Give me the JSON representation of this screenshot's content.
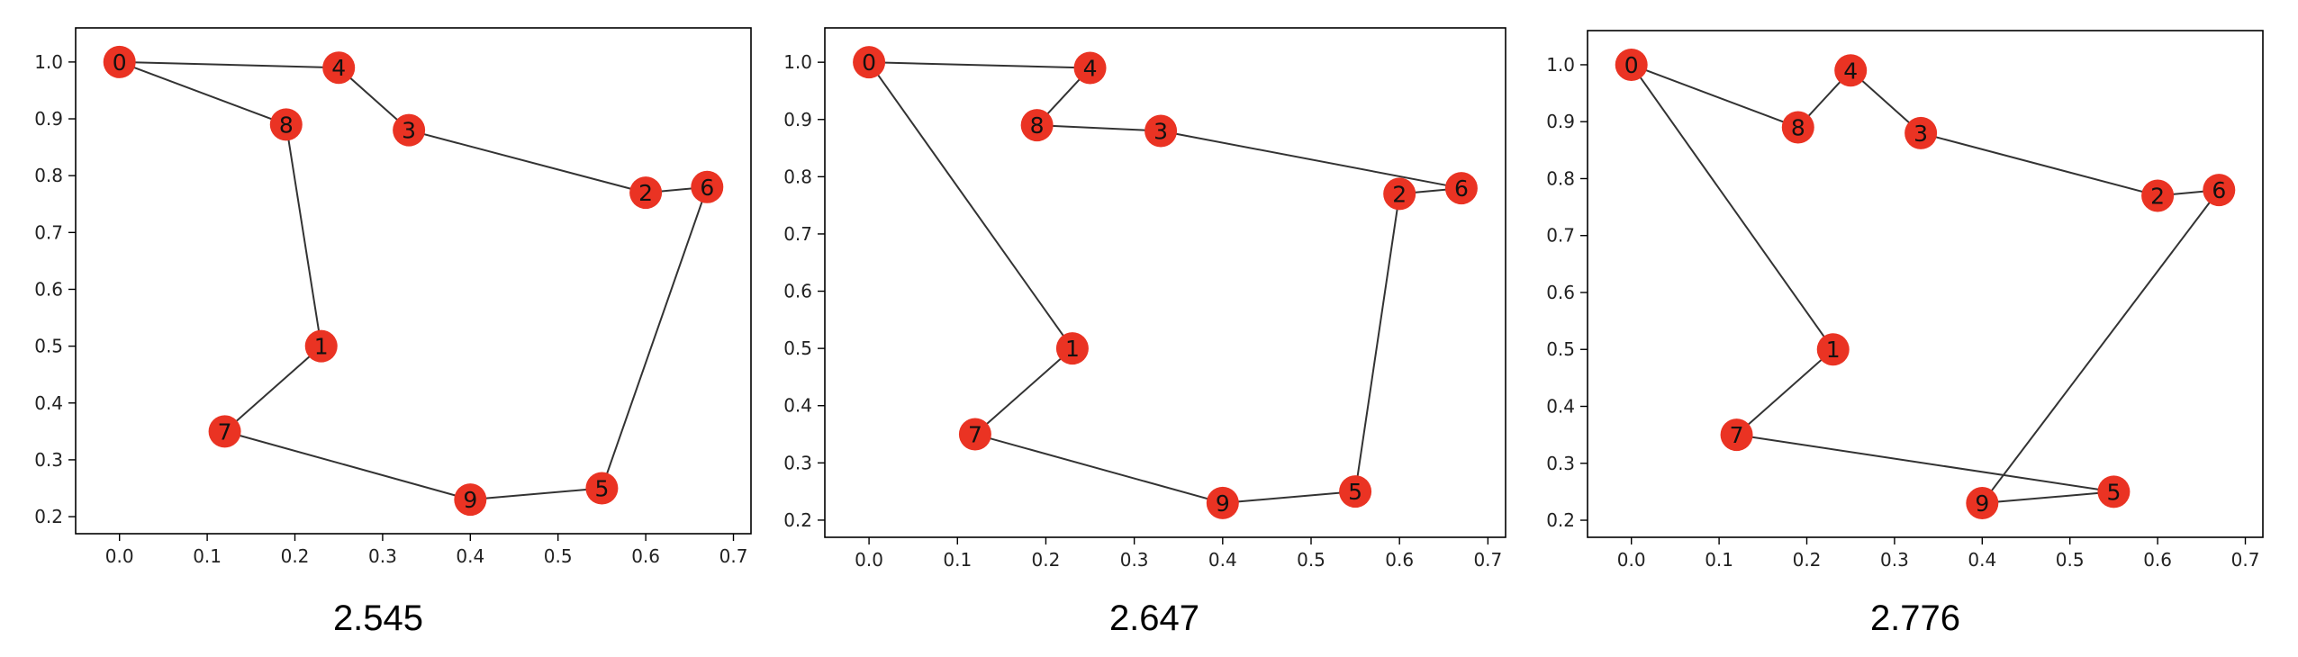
{
  "chart_data": [
    {
      "type": "scatter",
      "caption": "2.545",
      "xlim": [
        -0.05,
        0.72
      ],
      "ylim": [
        0.17,
        1.06
      ],
      "x_ticks": [
        "0.0",
        "0.1",
        "0.2",
        "0.3",
        "0.4",
        "0.5",
        "0.6",
        "0.7"
      ],
      "y_ticks": [
        "0.2",
        "0.3",
        "0.4",
        "0.5",
        "0.6",
        "0.7",
        "0.8",
        "0.9",
        "1.0"
      ],
      "nodes": [
        {
          "label": "0",
          "x": 0.0,
          "y": 1.0
        },
        {
          "label": "1",
          "x": 0.23,
          "y": 0.5
        },
        {
          "label": "2",
          "x": 0.6,
          "y": 0.77
        },
        {
          "label": "3",
          "x": 0.33,
          "y": 0.88
        },
        {
          "label": "4",
          "x": 0.25,
          "y": 0.99
        },
        {
          "label": "5",
          "x": 0.55,
          "y": 0.25
        },
        {
          "label": "6",
          "x": 0.67,
          "y": 0.78
        },
        {
          "label": "7",
          "x": 0.12,
          "y": 0.35
        },
        {
          "label": "8",
          "x": 0.19,
          "y": 0.89
        },
        {
          "label": "9",
          "x": 0.4,
          "y": 0.23
        }
      ],
      "edges": [
        [
          0,
          4
        ],
        [
          4,
          3
        ],
        [
          3,
          2
        ],
        [
          2,
          6
        ],
        [
          6,
          5
        ],
        [
          5,
          9
        ],
        [
          9,
          7
        ],
        [
          7,
          1
        ],
        [
          1,
          8
        ],
        [
          8,
          0
        ]
      ],
      "grid": false
    },
    {
      "type": "scatter",
      "caption": "2.647",
      "xlim": [
        -0.05,
        0.72
      ],
      "ylim": [
        0.17,
        1.06
      ],
      "x_ticks": [
        "0.0",
        "0.1",
        "0.2",
        "0.3",
        "0.4",
        "0.5",
        "0.6",
        "0.7"
      ],
      "y_ticks": [
        "0.2",
        "0.3",
        "0.4",
        "0.5",
        "0.6",
        "0.7",
        "0.8",
        "0.9",
        "1.0"
      ],
      "nodes": [
        {
          "label": "0",
          "x": 0.0,
          "y": 1.0
        },
        {
          "label": "1",
          "x": 0.23,
          "y": 0.5
        },
        {
          "label": "2",
          "x": 0.6,
          "y": 0.77
        },
        {
          "label": "3",
          "x": 0.33,
          "y": 0.88
        },
        {
          "label": "4",
          "x": 0.25,
          "y": 0.99
        },
        {
          "label": "5",
          "x": 0.55,
          "y": 0.25
        },
        {
          "label": "6",
          "x": 0.67,
          "y": 0.78
        },
        {
          "label": "7",
          "x": 0.12,
          "y": 0.35
        },
        {
          "label": "8",
          "x": 0.19,
          "y": 0.89
        },
        {
          "label": "9",
          "x": 0.4,
          "y": 0.23
        }
      ],
      "edges": [
        [
          0,
          4
        ],
        [
          4,
          8
        ],
        [
          8,
          3
        ],
        [
          3,
          6
        ],
        [
          6,
          2
        ],
        [
          2,
          5
        ],
        [
          5,
          9
        ],
        [
          9,
          7
        ],
        [
          7,
          1
        ],
        [
          1,
          0
        ]
      ],
      "grid": false
    },
    {
      "type": "scatter",
      "caption": "2.776",
      "xlim": [
        -0.05,
        0.72
      ],
      "ylim": [
        0.17,
        1.06
      ],
      "x_ticks": [
        "0.0",
        "0.1",
        "0.2",
        "0.3",
        "0.4",
        "0.5",
        "0.6",
        "0.7"
      ],
      "y_ticks": [
        "0.2",
        "0.3",
        "0.4",
        "0.5",
        "0.6",
        "0.7",
        "0.8",
        "0.9",
        "1.0"
      ],
      "nodes": [
        {
          "label": "0",
          "x": 0.0,
          "y": 1.0
        },
        {
          "label": "1",
          "x": 0.23,
          "y": 0.5
        },
        {
          "label": "2",
          "x": 0.6,
          "y": 0.77
        },
        {
          "label": "3",
          "x": 0.33,
          "y": 0.88
        },
        {
          "label": "4",
          "x": 0.25,
          "y": 0.99
        },
        {
          "label": "5",
          "x": 0.55,
          "y": 0.25
        },
        {
          "label": "6",
          "x": 0.67,
          "y": 0.78
        },
        {
          "label": "7",
          "x": 0.12,
          "y": 0.35
        },
        {
          "label": "8",
          "x": 0.19,
          "y": 0.89
        },
        {
          "label": "9",
          "x": 0.4,
          "y": 0.23
        }
      ],
      "edges": [
        [
          0,
          8
        ],
        [
          8,
          4
        ],
        [
          4,
          3
        ],
        [
          3,
          2
        ],
        [
          2,
          6
        ],
        [
          6,
          9
        ],
        [
          9,
          5
        ],
        [
          5,
          7
        ],
        [
          7,
          1
        ],
        [
          1,
          0
        ]
      ],
      "grid": false
    }
  ],
  "colors": {
    "node_fill": "#ea3323",
    "edge": "#333333",
    "axis": "#000000"
  }
}
